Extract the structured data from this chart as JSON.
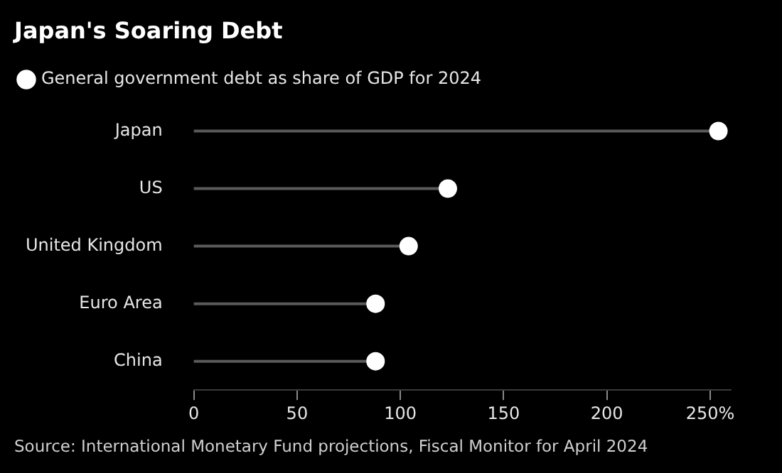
{
  "chart_data": {
    "type": "lollipop",
    "title": "Japan's Soaring Debt",
    "orientation": "horizontal",
    "categories": [
      "Japan",
      "US",
      "United Kingdom",
      "Euro Area",
      "China"
    ],
    "series": [
      {
        "name": "General government debt as share of GDP for 2024",
        "color": "#ffffff",
        "values": [
          254,
          123,
          104,
          88,
          88
        ]
      }
    ],
    "xlim": [
      0,
      260
    ],
    "xticks": [
      0,
      50,
      100,
      150,
      200,
      {
        "value": 250,
        "label": "250%"
      }
    ],
    "grid": false,
    "legend": "top left",
    "marker": "circle",
    "annotations": [
      "Source: International Monetary Fund projections, Fiscal Monitor for April 2024"
    ]
  }
}
